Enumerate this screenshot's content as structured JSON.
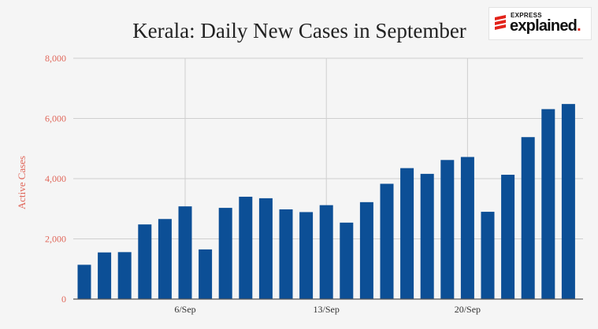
{
  "logo": {
    "small_text": "EXPRESS",
    "big_text": "explained",
    "dot": ".",
    "accent_color": "#e2231a"
  },
  "chart_data": {
    "type": "bar",
    "title": "Kerala: Daily New Cases in September",
    "xlabel": "",
    "ylabel": "Active Cases",
    "ylim": [
      0,
      8000
    ],
    "yticks": [
      0,
      2000,
      4000,
      6000,
      8000
    ],
    "ytick_labels": [
      "0",
      "2,000",
      "4,000",
      "6,000",
      "8,000"
    ],
    "categories": [
      "1/Sep",
      "2/Sep",
      "3/Sep",
      "4/Sep",
      "5/Sep",
      "6/Sep",
      "7/Sep",
      "8/Sep",
      "9/Sep",
      "10/Sep",
      "11/Sep",
      "12/Sep",
      "13/Sep",
      "14/Sep",
      "15/Sep",
      "16/Sep",
      "17/Sep",
      "18/Sep",
      "19/Sep",
      "20/Sep",
      "21/Sep",
      "22/Sep",
      "23/Sep",
      "24/Sep",
      "25/Sep"
    ],
    "x_tick_labels": [
      {
        "category": "6/Sep",
        "label": "6/Sep"
      },
      {
        "category": "13/Sep",
        "label": "13/Sep"
      },
      {
        "category": "20/Sep",
        "label": "20/Sep"
      }
    ],
    "values": [
      1140,
      1550,
      1560,
      2480,
      2660,
      3080,
      1650,
      3030,
      3400,
      3350,
      2980,
      2890,
      3120,
      2540,
      3220,
      3830,
      4350,
      4160,
      4620,
      4720,
      2900,
      4130,
      5380,
      6310,
      6480
    ],
    "bar_color": "#0c4f96",
    "grid": true
  }
}
